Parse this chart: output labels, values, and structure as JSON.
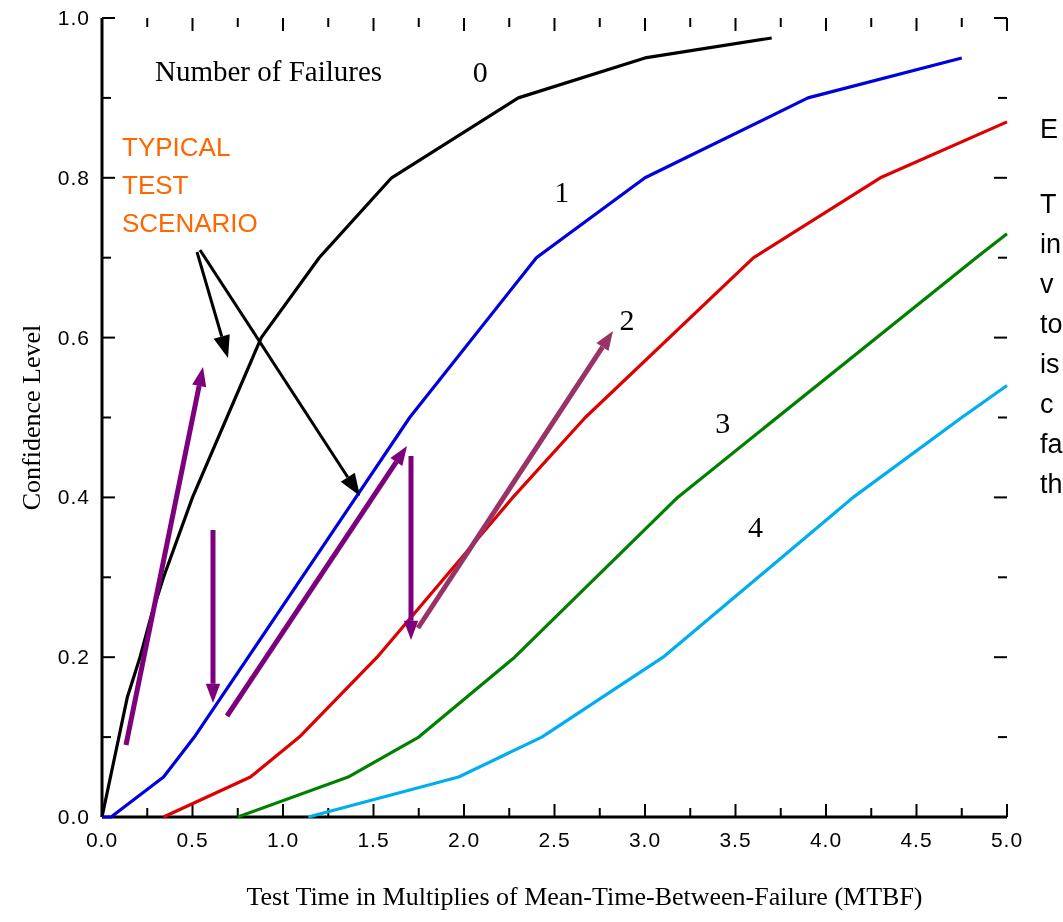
{
  "chart_data": {
    "type": "line",
    "xlabel": "Test Time in Multiplies of Mean-Time-Between-Failure (MTBF)",
    "ylabel": "Confidence Level",
    "legend_title": "Number of Failures",
    "xlim": [
      0,
      5
    ],
    "ylim": [
      0,
      1
    ],
    "xticks": [
      {
        "value": 0,
        "label": "0.0"
      },
      {
        "value": 0.25,
        "label": null
      },
      {
        "value": 0.5,
        "label": "0.5"
      },
      {
        "value": 0.75,
        "label": null
      },
      {
        "value": 1,
        "label": "1.0"
      },
      {
        "value": 1.25,
        "label": null
      },
      {
        "value": 1.5,
        "label": "1.5"
      },
      {
        "value": 1.75,
        "label": null
      },
      {
        "value": 2,
        "label": "2.0"
      },
      {
        "value": 2.25,
        "label": null
      },
      {
        "value": 2.5,
        "label": "2.5"
      },
      {
        "value": 2.75,
        "label": null
      },
      {
        "value": 3,
        "label": "3.0"
      },
      {
        "value": 3.25,
        "label": null
      },
      {
        "value": 3.5,
        "label": "3.5"
      },
      {
        "value": 3.75,
        "label": null
      },
      {
        "value": 4,
        "label": "4.0"
      },
      {
        "value": 4.25,
        "label": null
      },
      {
        "value": 4.5,
        "label": "4.5"
      },
      {
        "value": 4.75,
        "label": null
      },
      {
        "value": 5,
        "label": "5.0"
      }
    ],
    "yticks": [
      {
        "value": 0,
        "label": "0.0"
      },
      {
        "value": 0.1,
        "label": null
      },
      {
        "value": 0.2,
        "label": "0.2"
      },
      {
        "value": 0.3,
        "label": null
      },
      {
        "value": 0.4,
        "label": "0.4"
      },
      {
        "value": 0.5,
        "label": null
      },
      {
        "value": 0.6,
        "label": "0.6"
      },
      {
        "value": 0.7,
        "label": null
      },
      {
        "value": 0.8,
        "label": "0.8"
      },
      {
        "value": 0.9,
        "label": null
      },
      {
        "value": 1,
        "label": "1.0"
      }
    ],
    "grid": false,
    "marker": "none",
    "line_style": "solid",
    "series": [
      {
        "name": "0",
        "color": "#000000",
        "x": [
          0,
          0.14,
          0.21,
          0.27,
          0.34,
          0.5,
          0.88,
          1.2,
          1.6,
          2.3,
          3.0,
          3.7
        ],
        "values": [
          0,
          0.15,
          0.2,
          0.25,
          0.3,
          0.4,
          0.6,
          0.7,
          0.8,
          0.9,
          0.95,
          0.975
        ]
      },
      {
        "name": "1",
        "color": "#0000dd",
        "x": [
          0,
          0.05,
          0.34,
          0.51,
          1.7,
          2.4,
          3.0,
          3.9,
          4.75
        ],
        "values": [
          0,
          0,
          0.05,
          0.1,
          0.5,
          0.7,
          0.8,
          0.9,
          0.95
        ]
      },
      {
        "name": "2",
        "color": "#dd0000",
        "x": [
          0.34,
          0.82,
          1.09,
          1.52,
          2.27,
          2.67,
          3.6,
          4.3,
          5.0
        ],
        "values": [
          0,
          0.05,
          0.1,
          0.2,
          0.4,
          0.5,
          0.7,
          0.8,
          0.87
        ]
      },
      {
        "name": "3",
        "color": "#007f00",
        "x": [
          0.75,
          1.36,
          1.75,
          2.28,
          3.18,
          4.83,
          5.0
        ],
        "values": [
          0,
          0.05,
          0.1,
          0.2,
          0.4,
          0.7,
          0.73
        ]
      },
      {
        "name": "4",
        "color": "#00aeef",
        "x": [
          1.14,
          1.97,
          2.43,
          3.1,
          4.15,
          4.75,
          5.0
        ],
        "values": [
          0,
          0.05,
          0.1,
          0.2,
          0.4,
          0.5,
          0.54
        ]
      }
    ],
    "annotations": [
      "TYPICAL TEST SCENARIO",
      "E",
      "T",
      "in",
      "v",
      "to",
      "is",
      "c",
      "fa",
      "th"
    ]
  }
}
